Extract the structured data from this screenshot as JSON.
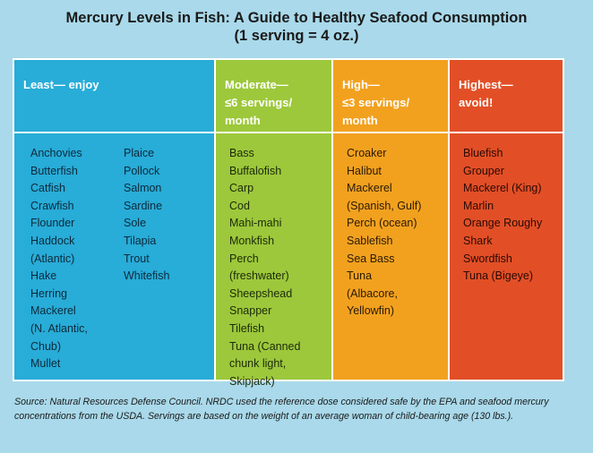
{
  "title": {
    "line1": "Mercury Levels in Fish: A Guide to Healthy Seafood Consumption",
    "line2": "(1 serving = 4 oz.)"
  },
  "columns": [
    {
      "header": "Least— enjoy",
      "subcolumns": [
        [
          "Anchovies",
          "Butterfish",
          "Catfish",
          "Crawfish",
          "Flounder",
          "Haddock\n(Atlantic)",
          "Hake",
          "Herring",
          "Mackerel\n(N. Atlantic,\nChub)",
          "Mullet"
        ],
        [
          "Plaice",
          "Pollock",
          "Salmon",
          "Sardine",
          "Sole",
          "Tilapia",
          "Trout",
          "Whitefish"
        ]
      ],
      "color": "#28acd8"
    },
    {
      "header": "Moderate—\n≤6 servings/\nmonth",
      "items": [
        "Bass",
        "Buffalofish",
        "Carp",
        "Cod",
        "Mahi-mahi",
        "Monkfish",
        "Perch\n(freshwater)",
        "Sheepshead",
        "Snapper",
        "Tilefish",
        "Tuna (Canned\nchunk light,\nSkipjack)"
      ],
      "color": "#9dc83b"
    },
    {
      "header": "High—\n≤3 servings/\nmonth",
      "items": [
        "Croaker",
        "Halibut",
        "Mackerel\n(Spanish, Gulf)",
        "Perch (ocean)",
        "Sablefish",
        "Sea Bass",
        "Tuna\n(Albacore,\nYellowfin)"
      ],
      "color": "#f2a11f"
    },
    {
      "header": "Highest—\navoid!",
      "items": [
        "Bluefish",
        "Grouper",
        "Mackerel (King)",
        "Marlin",
        "Orange Roughy",
        "Shark",
        "Swordfish",
        "Tuna (Bigeye)"
      ],
      "color": "#e24f26"
    }
  ],
  "source": "Source:  Natural Resources Defense Council. NRDC used the reference dose considered safe by the EPA and seafood mercury concentrations from the USDA. Servings are based on the weight of an average woman of child-bearing age (130 lbs.)."
}
